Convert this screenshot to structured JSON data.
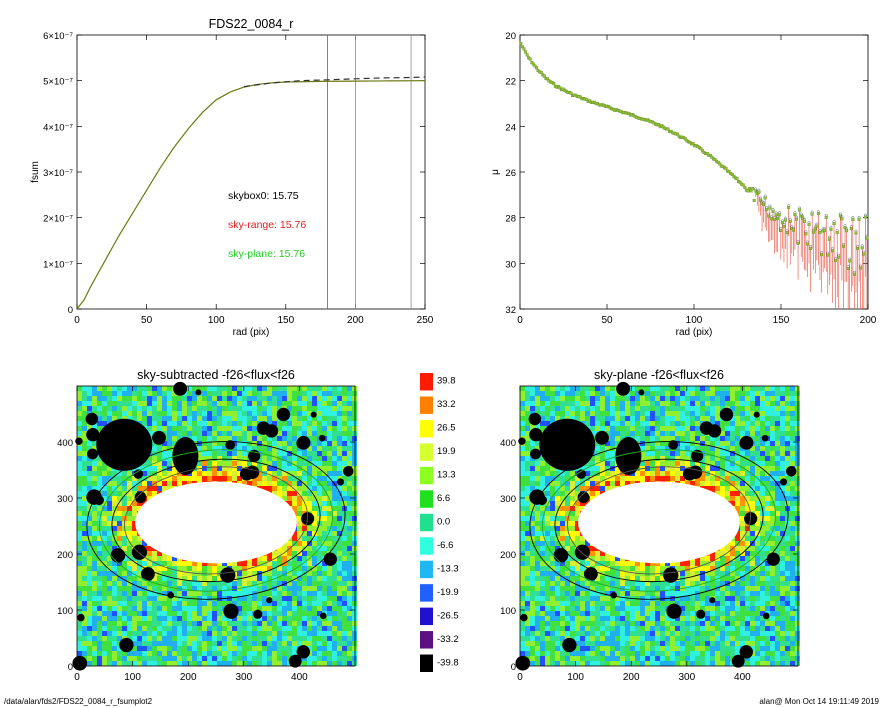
{
  "chart_data": [
    {
      "id": "fsum",
      "type": "line",
      "title": "FDS22_0084_r",
      "xlabel": "rad (pix)",
      "ylabel": "fsum",
      "xlim": [
        0,
        250
      ],
      "ylim": [
        0,
        6e-07
      ],
      "x_ticks": [
        "0",
        "50",
        "100",
        "150",
        "200",
        "250"
      ],
      "y_ticks": [
        "0",
        "1×10⁻⁷",
        "2×10⁻⁷",
        "3×10⁻⁷",
        "4×10⁻⁷",
        "5×10⁻⁷",
        "6×10⁻⁷"
      ],
      "vertical_lines": [
        {
          "x": 180,
          "color": "#e03030"
        },
        {
          "x": 200,
          "color": "#888888"
        },
        {
          "x": 240,
          "color": "#888888"
        }
      ],
      "series": [
        {
          "color": "#6e7a12",
          "style": "solid",
          "x": [
            0,
            5,
            10,
            20,
            30,
            40,
            50,
            60,
            70,
            80,
            90,
            100,
            110,
            120,
            130,
            140,
            150,
            175,
            200,
            225,
            250
          ],
          "y": [
            0,
            2e-08,
            5e-08,
            1.05e-07,
            1.6e-07,
            2.1e-07,
            2.6e-07,
            3.1e-07,
            3.55e-07,
            3.95e-07,
            4.3e-07,
            4.58e-07,
            4.75e-07,
            4.86e-07,
            4.92e-07,
            4.95e-07,
            4.97e-07,
            4.985e-07,
            4.99e-07,
            4.995e-07,
            5e-07
          ]
        },
        {
          "color": "#333333",
          "style": "dashed",
          "x": [
            120,
            140,
            160,
            180,
            200,
            220,
            240,
            250
          ],
          "y": [
            4.87e-07,
            4.95e-07,
            5e-07,
            5.02e-07,
            5.04e-07,
            5.06e-07,
            5.07e-07,
            5.08e-07
          ]
        }
      ],
      "annotations": [
        {
          "text": "skybox0: 15.75",
          "color": "#000000"
        },
        {
          "text": "sky-range: 15.76",
          "color": "#e02020"
        },
        {
          "text": "sky-plane: 15.76",
          "color": "#22cc22"
        }
      ]
    },
    {
      "id": "mu",
      "type": "scatter",
      "xlabel": "rad (pix)",
      "ylabel": "μ",
      "xlim": [
        0,
        200
      ],
      "ylim": [
        32,
        20
      ],
      "x_ticks": [
        "0",
        "50",
        "100",
        "150",
        "200"
      ],
      "y_ticks": [
        "20",
        "22",
        "24",
        "26",
        "28",
        "30",
        "32"
      ],
      "profile": {
        "x": [
          0,
          2,
          5,
          10,
          15,
          20,
          30,
          40,
          50,
          60,
          70,
          80,
          90,
          100,
          110,
          120,
          130,
          140,
          150,
          160,
          170,
          180,
          190,
          200
        ],
        "y": [
          20.3,
          20.6,
          21.0,
          21.5,
          21.9,
          22.2,
          22.6,
          22.9,
          23.15,
          23.4,
          23.65,
          23.95,
          24.35,
          24.8,
          25.35,
          26.0,
          26.7,
          27.4,
          28.0,
          28.4,
          28.7,
          28.9,
          29.1,
          29.3
        ]
      },
      "marker_color": "#8ec63f"
    },
    {
      "id": "img-left",
      "type": "heatmap",
      "title": "sky-subtracted -f26<flux<f26",
      "xlim": [
        0,
        500
      ],
      "ylim": [
        0,
        500
      ],
      "x_ticks": [
        "0",
        "100",
        "200",
        "300",
        "400"
      ],
      "y_ticks": [
        "0",
        "100",
        "200",
        "300",
        "400"
      ]
    },
    {
      "id": "img-right",
      "type": "heatmap",
      "title": "sky-plane -f26<flux<f26",
      "xlim": [
        0,
        500
      ],
      "ylim": [
        0,
        500
      ],
      "x_ticks": [
        "0",
        "100",
        "200",
        "300",
        "400"
      ],
      "y_ticks": [
        "0",
        "100",
        "200",
        "300",
        "400"
      ]
    },
    {
      "id": "colorbar",
      "type": "table",
      "labels": [
        "39.8",
        "33.2",
        "26.5",
        "19.9",
        "13.3",
        "6.6",
        "0.0",
        "-6.6",
        "-13.3",
        "-19.9",
        "-26.5",
        "-33.2",
        "-39.8"
      ],
      "colors": [
        "#ff1a00",
        "#ff8000",
        "#ffff00",
        "#d8ff30",
        "#8cff20",
        "#20e020",
        "#20e090",
        "#30ffe0",
        "#20b8f0",
        "#2060ff",
        "#2010d0",
        "#5a1080",
        "#000000"
      ]
    }
  ],
  "footer": {
    "left": "/data/alan/fds2/FDS22_0084_r_fsumplot2",
    "right": "alan@  Mon Oct 14 19:11:49 2019"
  }
}
